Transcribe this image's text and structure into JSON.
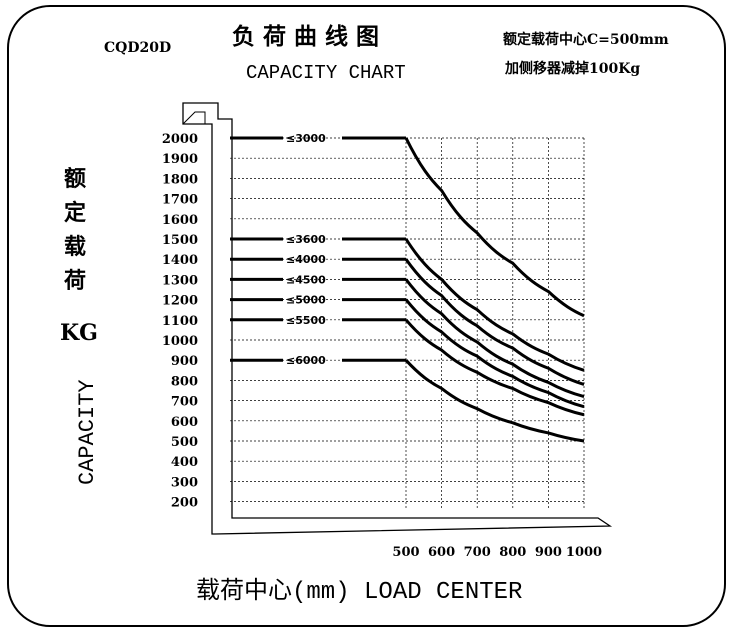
{
  "header": {
    "model": "CQD20D",
    "title_cn": "负 荷 曲 线 图",
    "title_en": "CAPACITY CHART",
    "note_line1": "额定载荷中心C=500mm",
    "note_line2": "加侧移器减掉100Kg"
  },
  "chart_data": {
    "type": "line",
    "ylabel_cn": [
      "额",
      "定",
      "载",
      "荷"
    ],
    "ylabel_unit": "KG",
    "ylabel_en": "CAPACITY",
    "xlabel": "载荷中心(mm) LOAD CENTER",
    "y_ticks": [
      2000,
      1900,
      1800,
      1700,
      1600,
      1500,
      1400,
      1300,
      1200,
      1100,
      1000,
      900,
      800,
      700,
      600,
      500,
      400,
      300,
      200
    ],
    "x_ticks": [
      500,
      600,
      700,
      800,
      900,
      1000
    ],
    "ylim": [
      200,
      2000
    ],
    "xlim": [
      0,
      1000
    ],
    "grid": true,
    "series": [
      {
        "name": "≤3000",
        "x": [
          0,
          500,
          600,
          700,
          800,
          900,
          1000
        ],
        "y": [
          2000,
          2000,
          1740,
          1530,
          1380,
          1240,
          1120
        ]
      },
      {
        "name": "≤3600",
        "x": [
          0,
          500,
          600,
          700,
          800,
          900,
          1000
        ],
        "y": [
          1500,
          1500,
          1300,
          1150,
          1030,
          930,
          850
        ]
      },
      {
        "name": "≤4000",
        "x": [
          0,
          500,
          600,
          700,
          800,
          900,
          1000
        ],
        "y": [
          1400,
          1400,
          1220,
          1070,
          960,
          860,
          780
        ]
      },
      {
        "name": "≤4500",
        "x": [
          0,
          500,
          600,
          700,
          800,
          900,
          1000
        ],
        "y": [
          1300,
          1300,
          1130,
          990,
          880,
          790,
          720
        ]
      },
      {
        "name": "≤5000",
        "x": [
          0,
          500,
          600,
          700,
          800,
          900,
          1000
        ],
        "y": [
          1200,
          1200,
          1040,
          920,
          820,
          740,
          670
        ]
      },
      {
        "name": "≤5500",
        "x": [
          0,
          500,
          600,
          700,
          800,
          900,
          1000
        ],
        "y": [
          1100,
          1100,
          950,
          840,
          760,
          690,
          630
        ]
      },
      {
        "name": "≤6000",
        "x": [
          0,
          500,
          600,
          700,
          800,
          900,
          1000
        ],
        "y": [
          900,
          900,
          760,
          660,
          590,
          540,
          500
        ]
      }
    ]
  }
}
